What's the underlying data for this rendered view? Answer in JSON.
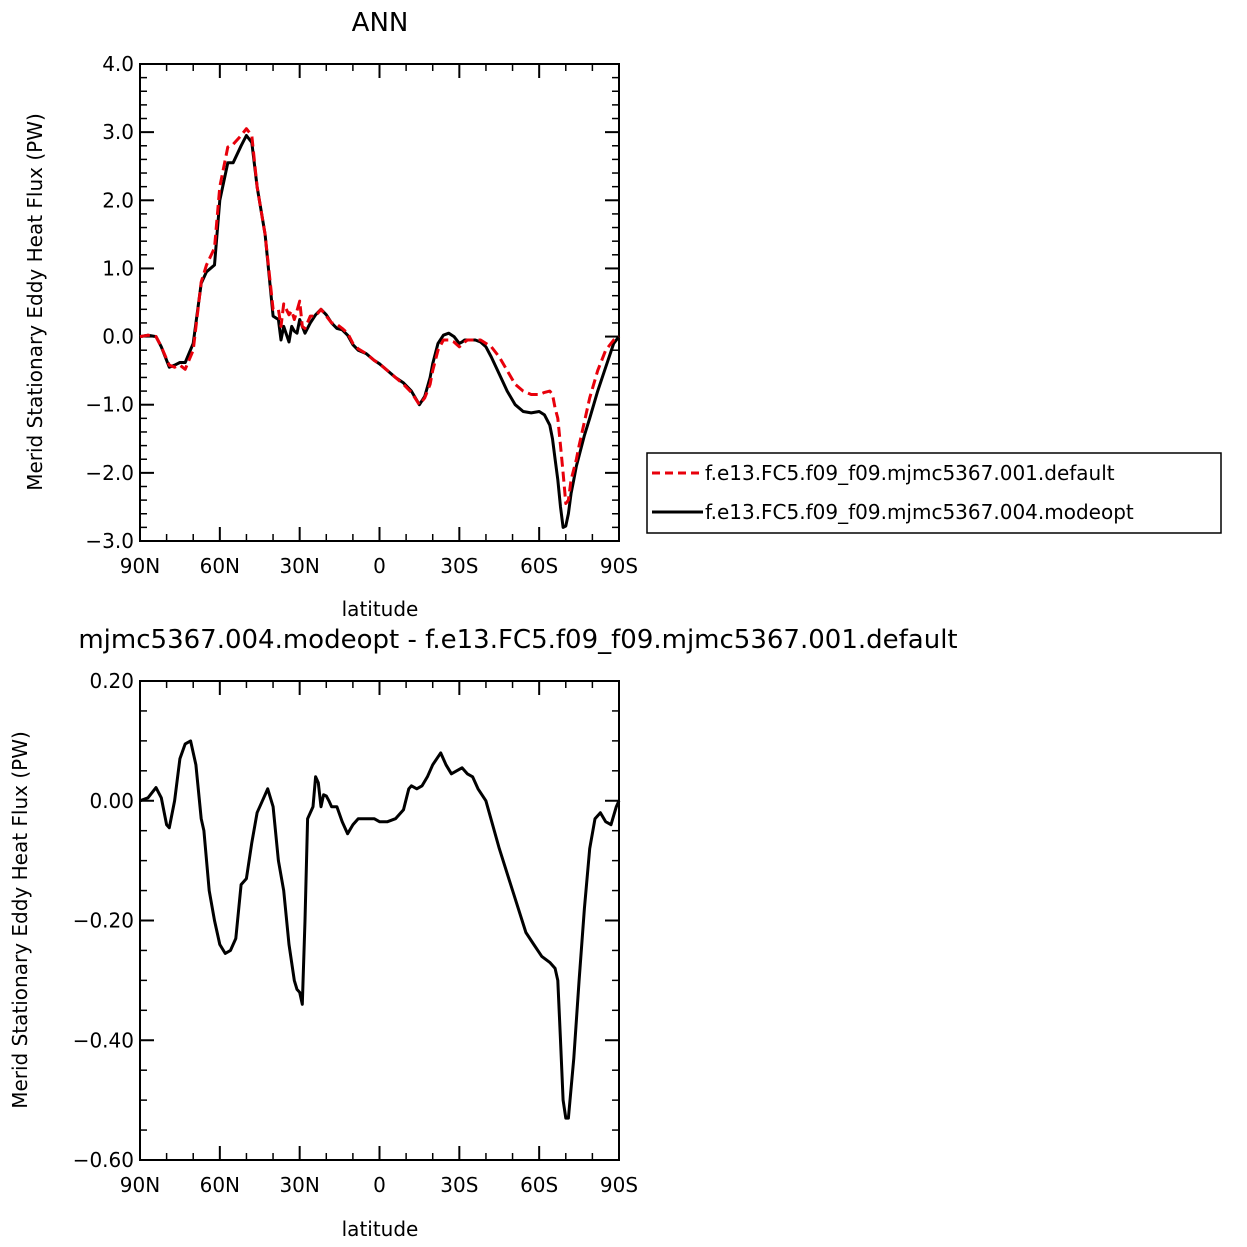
{
  "chart_data": [
    {
      "type": "line",
      "title": "ANN",
      "xlabel": "latitude",
      "ylabel": "Merid Stationary Eddy Heat Flux (PW)",
      "xlim": [
        90,
        -90
      ],
      "ylim": [
        -3.0,
        4.0
      ],
      "x_ticks": [
        "90N",
        "60N",
        "30N",
        "0",
        "30S",
        "60S",
        "90S"
      ],
      "y_ticks": [
        "4.0",
        "3.0",
        "2.0",
        "1.0",
        "0.0",
        "-1.0",
        "-2.0",
        "-3.0"
      ],
      "legend_placement": "right",
      "series": [
        {
          "name": "f.e13.FC5.f09_f09.mjmc5367.001.default",
          "color": "#e8000b",
          "dash": "dashed",
          "x": [
            90,
            87,
            84,
            82,
            79,
            77,
            75,
            73,
            70,
            67,
            65,
            62,
            60,
            57,
            55,
            52,
            50,
            48,
            46,
            43,
            40,
            38,
            37,
            36,
            34,
            33,
            32,
            31,
            30,
            29,
            28,
            26,
            24,
            22,
            20,
            18,
            16,
            14,
            12,
            10,
            8,
            5,
            2,
            0,
            -3,
            -6,
            -9,
            -12,
            -15,
            -17,
            -19,
            -20,
            -22,
            -24,
            -26,
            -28,
            -30,
            -31,
            -32,
            -33,
            -34,
            -36,
            -38,
            -40,
            -42,
            -45,
            -48,
            -51,
            -54,
            -57,
            -60,
            -62,
            -64,
            -65,
            -66,
            -67,
            -68,
            -69,
            -70,
            -71,
            -72,
            -73,
            -74,
            -75,
            -77,
            -79,
            -82,
            -85,
            -88,
            -90
          ],
          "y": [
            0.0,
            0.02,
            0.0,
            -0.15,
            -0.42,
            -0.45,
            -0.42,
            -0.48,
            -0.2,
            0.8,
            1.05,
            1.3,
            2.2,
            2.78,
            2.82,
            2.95,
            3.05,
            2.95,
            2.2,
            1.5,
            0.4,
            0.4,
            0.15,
            0.48,
            0.32,
            0.38,
            0.25,
            0.38,
            0.52,
            0.15,
            0.12,
            0.3,
            0.3,
            0.4,
            0.3,
            0.2,
            0.18,
            0.12,
            0.05,
            -0.1,
            -0.18,
            -0.25,
            -0.35,
            -0.4,
            -0.5,
            -0.6,
            -0.7,
            -0.82,
            -1.0,
            -0.9,
            -0.7,
            -0.5,
            -0.2,
            -0.05,
            -0.05,
            -0.08,
            -0.15,
            -0.12,
            -0.08,
            -0.05,
            -0.05,
            -0.05,
            -0.05,
            -0.1,
            -0.15,
            -0.3,
            -0.5,
            -0.7,
            -0.8,
            -0.85,
            -0.85,
            -0.82,
            -0.8,
            -0.85,
            -1.05,
            -1.2,
            -1.6,
            -2.0,
            -2.45,
            -2.4,
            -2.1,
            -1.95,
            -1.8,
            -1.6,
            -1.25,
            -0.9,
            -0.5,
            -0.2,
            -0.05,
            0.0
          ]
        },
        {
          "name": "f.e13.FC5.f09_f09.mjmc5367.004.modeopt",
          "color": "#000000",
          "dash": "solid",
          "x": [
            90,
            87,
            84,
            82,
            79,
            77,
            75,
            73,
            70,
            67,
            65,
            62,
            60,
            57,
            55,
            52,
            50,
            48,
            46,
            43,
            40,
            38,
            37,
            36,
            34,
            33,
            32,
            31,
            30,
            29,
            28,
            26,
            24,
            22,
            20,
            18,
            16,
            14,
            12,
            10,
            8,
            5,
            2,
            0,
            -3,
            -6,
            -9,
            -12,
            -15,
            -17,
            -19,
            -20,
            -22,
            -24,
            -26,
            -28,
            -30,
            -31,
            -32,
            -33,
            -34,
            -36,
            -38,
            -40,
            -42,
            -45,
            -48,
            -51,
            -54,
            -57,
            -60,
            -62,
            -64,
            -65,
            -66,
            -67,
            -68,
            -69,
            -70,
            -71,
            -72,
            -73,
            -74,
            -75,
            -77,
            -79,
            -82,
            -85,
            -88,
            -90
          ],
          "y": [
            0.0,
            0.02,
            0.0,
            -0.15,
            -0.45,
            -0.42,
            -0.38,
            -0.38,
            -0.1,
            0.78,
            0.95,
            1.05,
            2.0,
            2.55,
            2.55,
            2.8,
            2.95,
            2.85,
            2.2,
            1.5,
            0.3,
            0.25,
            -0.05,
            0.15,
            -0.08,
            0.15,
            0.08,
            0.05,
            0.25,
            0.15,
            0.05,
            0.2,
            0.32,
            0.4,
            0.32,
            0.2,
            0.12,
            0.1,
            0.02,
            -0.12,
            -0.2,
            -0.25,
            -0.35,
            -0.4,
            -0.5,
            -0.6,
            -0.68,
            -0.8,
            -1.0,
            -0.88,
            -0.6,
            -0.4,
            -0.1,
            0.02,
            0.05,
            0.0,
            -0.1,
            -0.08,
            -0.05,
            -0.05,
            -0.05,
            -0.05,
            -0.08,
            -0.15,
            -0.3,
            -0.55,
            -0.8,
            -1.0,
            -1.1,
            -1.12,
            -1.1,
            -1.15,
            -1.3,
            -1.5,
            -1.8,
            -2.1,
            -2.5,
            -2.8,
            -2.78,
            -2.6,
            -2.3,
            -2.1,
            -1.9,
            -1.75,
            -1.45,
            -1.2,
            -0.8,
            -0.45,
            -0.1,
            0.0
          ]
        }
      ]
    },
    {
      "type": "line",
      "title": "mjmc5367.004.modeopt - f.e13.FC5.f09_f09.mjmc5367.001.default",
      "xlabel": "latitude",
      "ylabel": "Merid Stationary Eddy Heat Flux (PW)",
      "xlim": [
        90,
        -90
      ],
      "ylim": [
        -0.6,
        0.2
      ],
      "x_ticks": [
        "90N",
        "60N",
        "30N",
        "0",
        "30S",
        "60S",
        "90S"
      ],
      "y_ticks": [
        "0.20",
        "0.00",
        "-0.20",
        "-0.40",
        "-0.60"
      ],
      "series": [
        {
          "color": "#000000",
          "dash": "solid",
          "x": [
            90,
            87,
            84,
            82,
            80,
            79,
            77,
            75,
            73,
            71,
            69,
            67,
            66,
            64,
            62,
            60,
            58,
            56,
            54,
            52,
            50,
            48,
            46,
            44,
            43,
            42,
            40,
            38,
            36,
            34,
            32,
            31,
            30,
            29,
            28,
            27,
            25,
            24,
            23,
            22,
            21,
            20,
            19,
            18,
            16,
            14,
            12,
            10,
            8,
            5,
            2,
            0,
            -3,
            -6,
            -9,
            -11,
            -12,
            -14,
            -16,
            -18,
            -20,
            -23,
            -25,
            -27,
            -29,
            -31,
            -33,
            -35,
            -37,
            -40,
            -45,
            -50,
            -55,
            -58,
            -61,
            -64,
            -66,
            -67,
            -68,
            -69,
            -70,
            -71,
            -73,
            -75,
            -77,
            -79,
            -81,
            -83,
            -85,
            -87,
            -89,
            -90
          ],
          "y": [
            0.0,
            0.005,
            0.022,
            0.005,
            -0.04,
            -0.045,
            0.0,
            0.07,
            0.095,
            0.1,
            0.06,
            -0.03,
            -0.05,
            -0.15,
            -0.2,
            -0.24,
            -0.255,
            -0.25,
            -0.23,
            -0.14,
            -0.13,
            -0.07,
            -0.02,
            0.0,
            0.01,
            0.02,
            -0.01,
            -0.1,
            -0.15,
            -0.24,
            -0.3,
            -0.315,
            -0.32,
            -0.34,
            -0.2,
            -0.03,
            -0.01,
            0.04,
            0.03,
            -0.01,
            0.01,
            0.008,
            0.0,
            -0.01,
            -0.01,
            -0.035,
            -0.055,
            -0.04,
            -0.03,
            -0.03,
            -0.03,
            -0.035,
            -0.035,
            -0.03,
            -0.015,
            0.02,
            0.025,
            0.02,
            0.025,
            0.04,
            0.06,
            0.08,
            0.06,
            0.045,
            0.05,
            0.055,
            0.045,
            0.04,
            0.02,
            0.0,
            -0.08,
            -0.15,
            -0.22,
            -0.24,
            -0.26,
            -0.27,
            -0.28,
            -0.3,
            -0.4,
            -0.5,
            -0.53,
            -0.53,
            -0.43,
            -0.3,
            -0.18,
            -0.08,
            -0.03,
            -0.02,
            -0.035,
            -0.04,
            -0.01,
            0.0
          ]
        }
      ]
    }
  ]
}
